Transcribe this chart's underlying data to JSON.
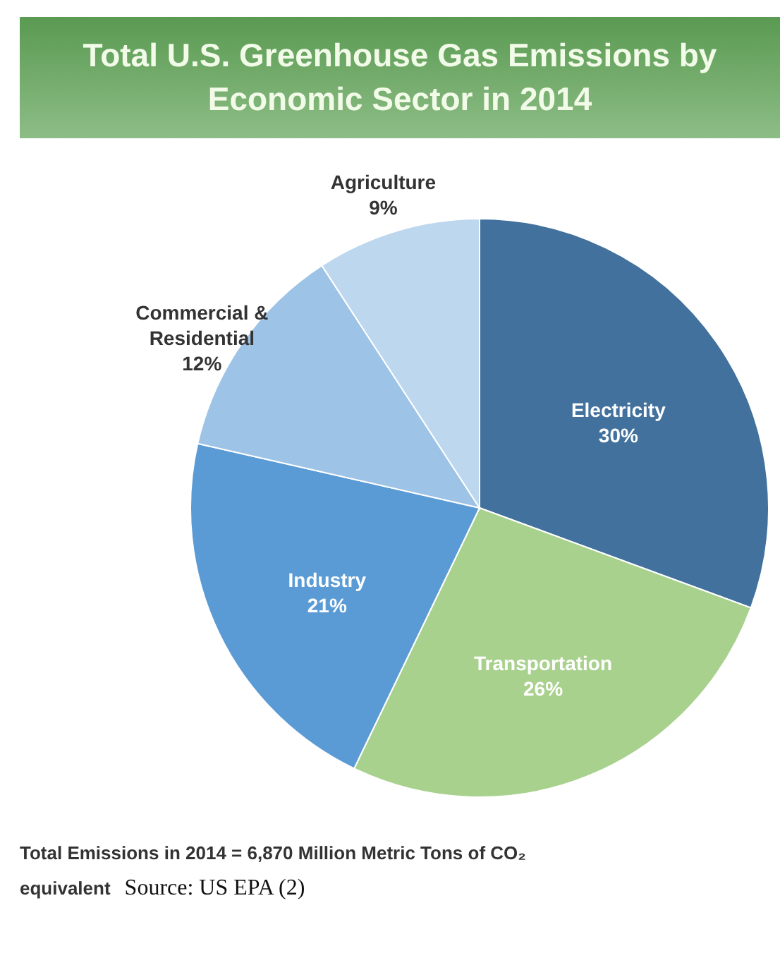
{
  "chart_data": {
    "type": "pie",
    "title": "Total U.S. Greenhouse Gas Emissions by Economic Sector in 2014",
    "categories": [
      "Electricity",
      "Transportation",
      "Industry",
      "Commercial & Residential",
      "Agriculture"
    ],
    "values": [
      30,
      26,
      21,
      12,
      9
    ],
    "value_labels": [
      "30%",
      "26%",
      "21%",
      "12%",
      "9%"
    ],
    "colors": [
      "#41719c",
      "#a9d18e",
      "#5b9bd5",
      "#9dc3e6",
      "#bdd7ee"
    ],
    "annotations": [
      "Total Emissions in 2014 = 6,870 Million Metric Tons of CO₂ equivalent",
      "Source: US EPA (2)"
    ]
  }
}
